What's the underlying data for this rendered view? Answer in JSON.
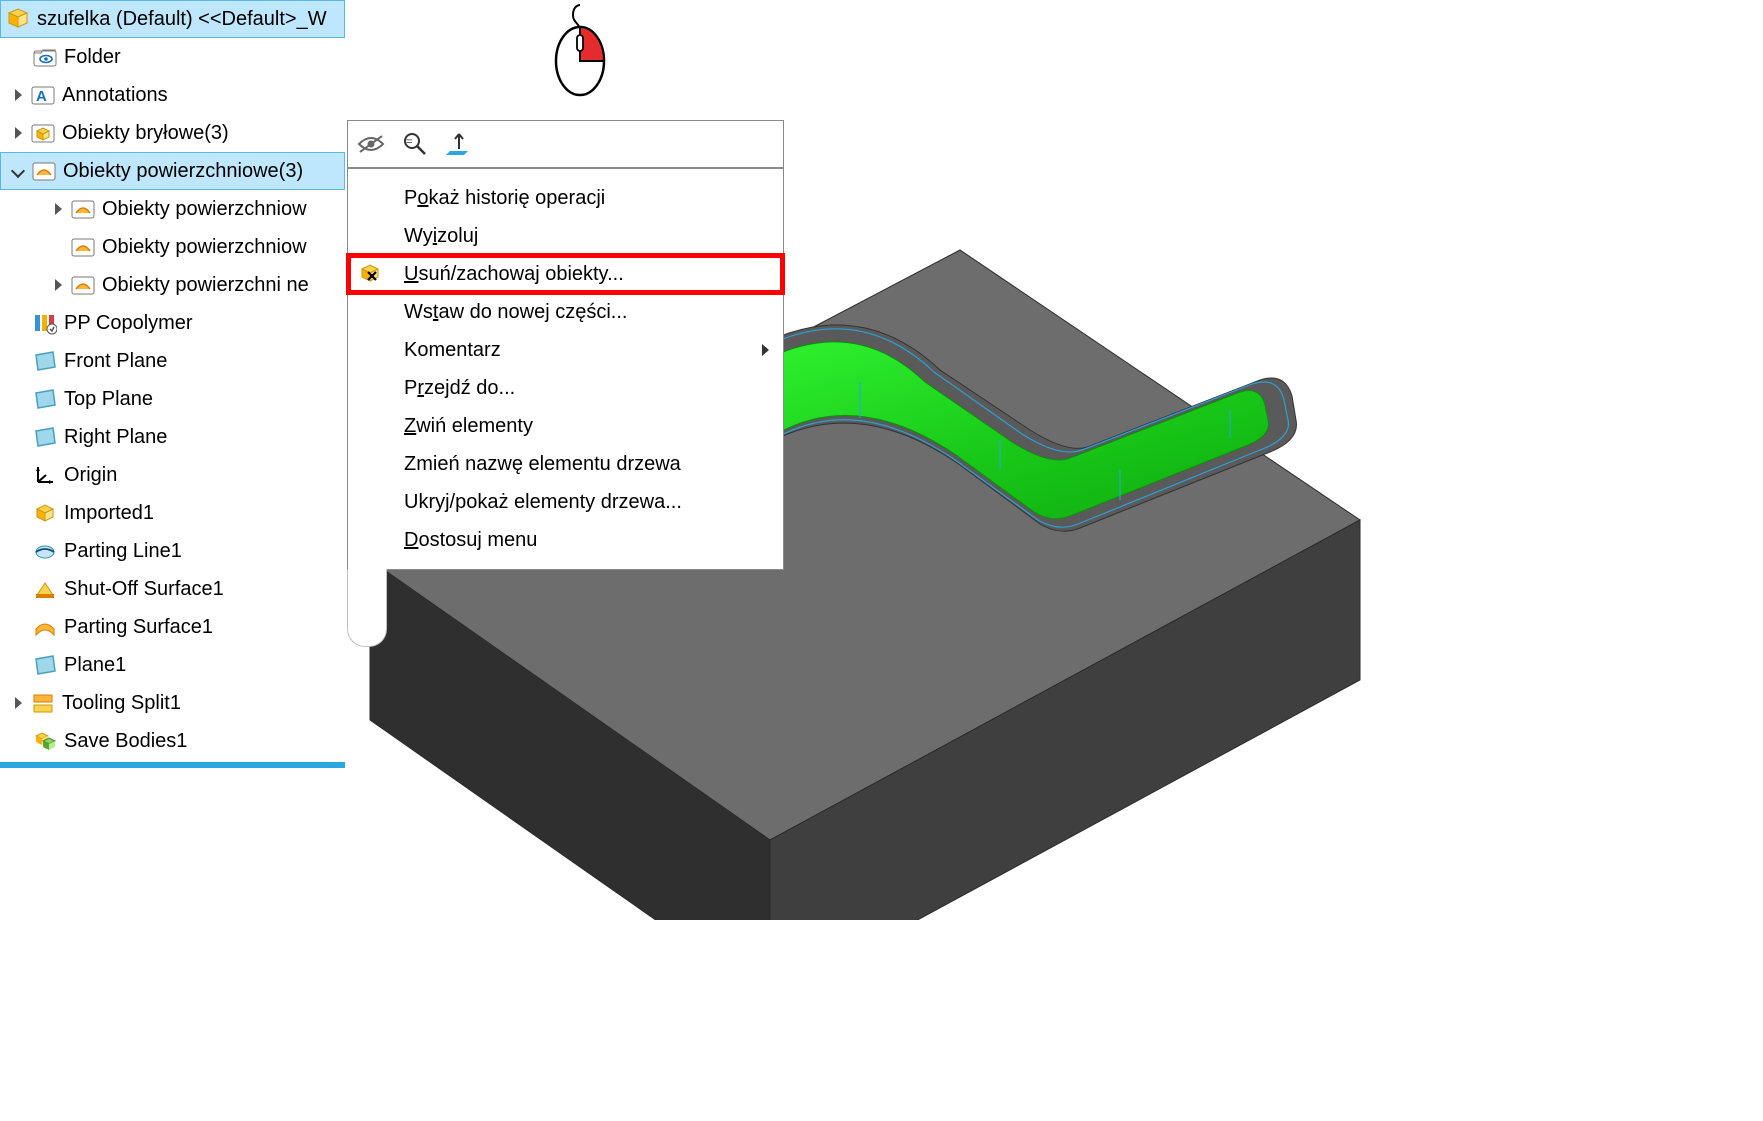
{
  "tree": {
    "root_label": "szufelka (Default) <<Default>_W",
    "items": [
      {
        "label": "Folder",
        "indent": 28,
        "expander": "",
        "icon": "folder-eye"
      },
      {
        "label": "Annotations",
        "indent": 8,
        "expander": "collapsed",
        "icon": "annotations"
      },
      {
        "label": "Obiekty bryłowe(3)",
        "indent": 8,
        "expander": "collapsed",
        "icon": "solid-body"
      },
      {
        "label": "Obiekty powierzchniowe(3)",
        "indent": 8,
        "expander": "expanded",
        "icon": "surf-folder",
        "active": true
      },
      {
        "label": "Obiekty powierzchniow",
        "indent": 48,
        "expander": "collapsed",
        "icon": "surf-folder"
      },
      {
        "label": "Obiekty powierzchniow",
        "indent": 66,
        "expander": "",
        "icon": "surf-folder"
      },
      {
        "label": "Obiekty powierzchni ne",
        "indent": 48,
        "expander": "collapsed",
        "icon": "surf-folder"
      },
      {
        "label": "PP Copolymer",
        "indent": 28,
        "expander": "",
        "icon": "material"
      },
      {
        "label": "Front Plane",
        "indent": 28,
        "expander": "",
        "icon": "plane"
      },
      {
        "label": "Top Plane",
        "indent": 28,
        "expander": "",
        "icon": "plane"
      },
      {
        "label": "Right Plane",
        "indent": 28,
        "expander": "",
        "icon": "plane"
      },
      {
        "label": "Origin",
        "indent": 28,
        "expander": "",
        "icon": "origin"
      },
      {
        "label": "Imported1",
        "indent": 28,
        "expander": "",
        "icon": "imported"
      },
      {
        "label": "Parting Line1",
        "indent": 28,
        "expander": "",
        "icon": "parting-line"
      },
      {
        "label": "Shut-Off Surface1",
        "indent": 28,
        "expander": "",
        "icon": "shutoff"
      },
      {
        "label": "Parting Surface1",
        "indent": 28,
        "expander": "",
        "icon": "parting-surf"
      },
      {
        "label": "Plane1",
        "indent": 28,
        "expander": "",
        "icon": "plane"
      },
      {
        "label": "Tooling Split1",
        "indent": 8,
        "expander": "collapsed",
        "icon": "tooling-split"
      },
      {
        "label": "Save Bodies1",
        "indent": 28,
        "expander": "",
        "icon": "save-bodies"
      }
    ]
  },
  "context_menu": {
    "items": [
      {
        "pre": "P",
        "u": "o",
        "post": "każ historię operacji",
        "icon": "",
        "submenu": false,
        "highlight": false
      },
      {
        "pre": "Wy",
        "u": "i",
        "post": "zoluj",
        "icon": "",
        "submenu": false,
        "highlight": false
      },
      {
        "pre": "",
        "u": "U",
        "post": "suń/zachowaj obiekty...",
        "icon": "delete-box",
        "submenu": false,
        "highlight": true
      },
      {
        "pre": "Ws",
        "u": "t",
        "post": "aw do nowej części...",
        "icon": "",
        "submenu": false,
        "highlight": false
      },
      {
        "pre": "Komentarz",
        "u": "",
        "post": "",
        "icon": "",
        "submenu": true,
        "highlight": false
      },
      {
        "pre": "P",
        "u": "r",
        "post": "zejdź do...",
        "icon": "",
        "submenu": false,
        "highlight": false
      },
      {
        "pre": "",
        "u": "Z",
        "post": "wiń elementy",
        "icon": "",
        "submenu": false,
        "highlight": false
      },
      {
        "pre": "Zmień nazwę elementu drzewa",
        "u": "",
        "post": "",
        "icon": "",
        "submenu": false,
        "highlight": false
      },
      {
        "pre": "Ukryj/pokaż elementy drzewa...",
        "u": "",
        "post": "",
        "icon": "",
        "submenu": false,
        "highlight": false
      },
      {
        "pre": "",
        "u": "D",
        "post": "ostosuj menu",
        "icon": "",
        "submenu": false,
        "highlight": false
      }
    ]
  },
  "colors": {
    "selection_bg": "#bee6fd",
    "selection_border": "#5cb6e7",
    "highlight_border": "#ff0000",
    "menu_border": "#8a8a8a",
    "tree_end_bar": "#2aa7e1",
    "mold_block": "#4c4c4c",
    "mold_block_light": "#6d6d6d",
    "cavity_green": "#1fd61f",
    "cavity_green_dark": "#0fa60f",
    "wire_blue": "#2aa7e1",
    "mouse_red": "#e52b2b"
  }
}
